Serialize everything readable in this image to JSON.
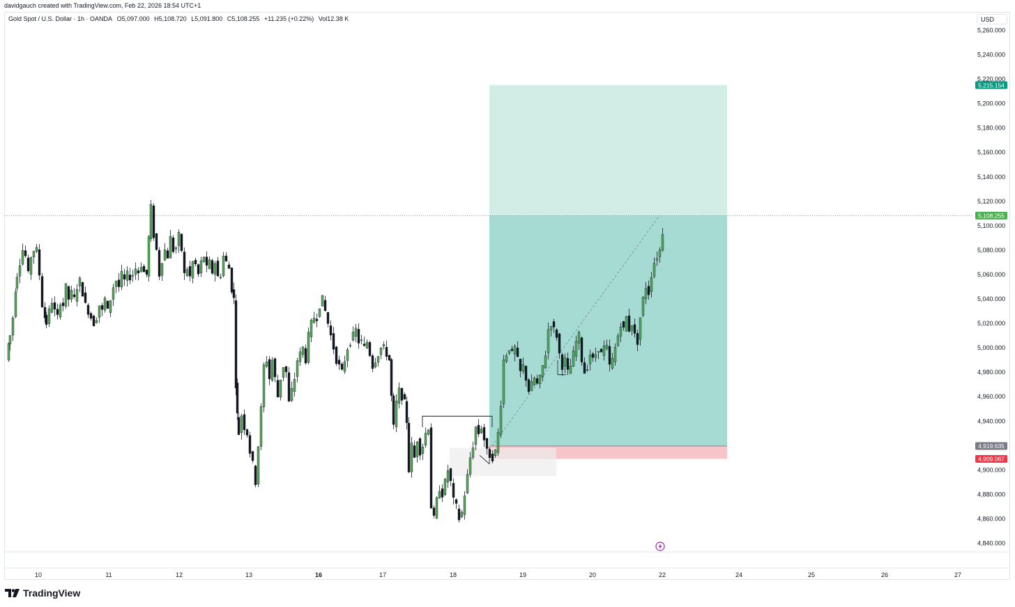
{
  "header": {
    "attribution": "davidgauch created with TradingView.com, Feb 22, 2026 18:54 UTC+1"
  },
  "legend": {
    "symbol": "Gold Spot / U.S. Dollar · 1h · OANDA",
    "open": "O5,097.000",
    "high": "H5,108.720",
    "low": "L5,091.800",
    "close": "C5,108.255",
    "change": "+11.235 (+0.22%)",
    "volume": "Vol12.38 K"
  },
  "currency_button": "USD",
  "brand": {
    "name": "TradingView"
  },
  "colors": {
    "up": "#089981",
    "candle_body": "#4caf50",
    "down": "#131722",
    "profit_zone": "#a5dbd2",
    "loss_zone": "#f7c5c9",
    "last_price": "#4caf50",
    "stop": "#f23645"
  },
  "chart_data": {
    "type": "candlestick",
    "symbol": "XAUUSD",
    "timeframe": "1h",
    "ylim": [
      4830,
      5270
    ],
    "price_ticks": [
      5260,
      5240,
      5220,
      5200,
      5180,
      5160,
      5140,
      5120,
      5100,
      5080,
      5060,
      5040,
      5020,
      5000,
      4980,
      4960,
      4940,
      4920,
      4900,
      4880,
      4860,
      4840
    ],
    "x_ticks": [
      "10",
      "11",
      "12",
      "13",
      "16",
      "17",
      "18",
      "19",
      "20",
      "22",
      "24",
      "25",
      "26",
      "27"
    ],
    "last_price": 5108.255,
    "price_badges": [
      {
        "label": "5,215.154",
        "value": 5215.154,
        "color": "#089981"
      },
      {
        "label": "5,108.255",
        "value": 5108.255,
        "color": "#4caf50"
      },
      {
        "label": "4,919.635",
        "value": 4919.635,
        "color": "#787b86"
      },
      {
        "label": "4,909.067",
        "value": 4909.067,
        "color": "#f23645"
      }
    ],
    "long_position": {
      "entry": 4919.635,
      "stop": 4909.067,
      "target": 5215.154
    },
    "price_path": [
      [
        0,
        4990
      ],
      [
        6,
        5010
      ],
      [
        10,
        5025
      ],
      [
        16,
        5060
      ],
      [
        20,
        5070
      ],
      [
        24,
        5080
      ],
      [
        28,
        5075
      ],
      [
        32,
        5060
      ],
      [
        36,
        5075
      ],
      [
        40,
        5080
      ],
      [
        44,
        5080
      ],
      [
        48,
        5060
      ],
      [
        52,
        5035
      ],
      [
        58,
        5020
      ],
      [
        62,
        5030
      ],
      [
        66,
        5038
      ],
      [
        70,
        5030
      ],
      [
        74,
        5025
      ],
      [
        78,
        5038
      ],
      [
        82,
        5035
      ],
      [
        86,
        5050
      ],
      [
        90,
        5040
      ],
      [
        94,
        5045
      ],
      [
        98,
        5040
      ],
      [
        102,
        5050
      ],
      [
        106,
        5055
      ],
      [
        110,
        5045
      ],
      [
        114,
        5035
      ],
      [
        118,
        5030
      ],
      [
        122,
        5025
      ],
      [
        126,
        5020
      ],
      [
        130,
        5025
      ],
      [
        134,
        5035
      ],
      [
        138,
        5030
      ],
      [
        142,
        5040
      ],
      [
        146,
        5030
      ],
      [
        150,
        5040
      ],
      [
        154,
        5050
      ],
      [
        158,
        5055
      ],
      [
        162,
        5050
      ],
      [
        166,
        5060
      ],
      [
        170,
        5055
      ],
      [
        174,
        5060
      ],
      [
        178,
        5058
      ],
      [
        182,
        5060
      ],
      [
        186,
        5065
      ],
      [
        190,
        5062
      ],
      [
        194,
        5068
      ],
      [
        198,
        5062
      ],
      [
        202,
        5060
      ],
      [
        205,
        5090
      ],
      [
        208,
        5115
      ],
      [
        212,
        5092
      ],
      [
        216,
        5080
      ],
      [
        220,
        5060
      ],
      [
        224,
        5072
      ],
      [
        228,
        5080
      ],
      [
        232,
        5075
      ],
      [
        236,
        5090
      ],
      [
        240,
        5080
      ],
      [
        244,
        5082
      ],
      [
        248,
        5092
      ],
      [
        252,
        5080
      ],
      [
        256,
        5060
      ],
      [
        260,
        5065
      ],
      [
        264,
        5058
      ],
      [
        268,
        5070
      ],
      [
        272,
        5068
      ],
      [
        276,
        5060
      ],
      [
        280,
        5070
      ],
      [
        284,
        5075
      ],
      [
        288,
        5065
      ],
      [
        292,
        5070
      ],
      [
        296,
        5062
      ],
      [
        300,
        5070
      ],
      [
        304,
        5058
      ],
      [
        308,
        5060
      ],
      [
        312,
        5075
      ],
      [
        316,
        5070
      ],
      [
        320,
        5065
      ],
      [
        324,
        5048
      ],
      [
        327,
        5040
      ],
      [
        330,
        4970
      ],
      [
        332,
        4945
      ],
      [
        334,
        4930
      ],
      [
        338,
        4945
      ],
      [
        342,
        4935
      ],
      [
        346,
        4930
      ],
      [
        350,
        4915
      ],
      [
        354,
        4905
      ],
      [
        358,
        4890
      ],
      [
        362,
        4920
      ],
      [
        366,
        4950
      ],
      [
        370,
        4985
      ],
      [
        374,
        4990
      ],
      [
        378,
        4975
      ],
      [
        382,
        4990
      ],
      [
        386,
        4975
      ],
      [
        390,
        4960
      ],
      [
        394,
        4975
      ],
      [
        398,
        4985
      ],
      [
        402,
        4980
      ],
      [
        406,
        4955
      ],
      [
        410,
        4965
      ],
      [
        414,
        4975
      ],
      [
        418,
        4990
      ],
      [
        422,
        4995
      ],
      [
        426,
        5000
      ],
      [
        430,
        4990
      ],
      [
        434,
        5010
      ],
      [
        438,
        5020
      ],
      [
        442,
        5025
      ],
      [
        446,
        5025
      ],
      [
        450,
        5035
      ],
      [
        454,
        5040
      ],
      [
        458,
        5030
      ],
      [
        462,
        5020
      ],
      [
        466,
        5010
      ],
      [
        470,
        5000
      ],
      [
        474,
        4990
      ],
      [
        478,
        4985
      ],
      [
        482,
        4980
      ],
      [
        486,
        4990
      ],
      [
        490,
        5000
      ],
      [
        494,
        5005
      ],
      [
        498,
        5010
      ],
      [
        502,
        5015
      ],
      [
        506,
        5005
      ],
      [
        510,
        5005
      ],
      [
        514,
        5000
      ],
      [
        518,
        5005
      ],
      [
        522,
        4995
      ],
      [
        526,
        4985
      ],
      [
        530,
        4990
      ],
      [
        534,
        4995
      ],
      [
        538,
        5000
      ],
      [
        542,
        5000
      ],
      [
        546,
        4995
      ],
      [
        550,
        4990
      ],
      [
        553,
        4960
      ],
      [
        556,
        4935
      ],
      [
        560,
        4955
      ],
      [
        564,
        4965
      ],
      [
        568,
        4960
      ],
      [
        572,
        4955
      ],
      [
        575,
        4940
      ],
      [
        578,
        4900
      ],
      [
        582,
        4920
      ],
      [
        586,
        4910
      ],
      [
        590,
        4925
      ],
      [
        594,
        4915
      ],
      [
        598,
        4920
      ],
      [
        602,
        4930
      ],
      [
        606,
        4935
      ],
      [
        610,
        4870
      ],
      [
        614,
        4860
      ],
      [
        618,
        4875
      ],
      [
        622,
        4885
      ],
      [
        626,
        4880
      ],
      [
        630,
        4890
      ],
      [
        634,
        4900
      ],
      [
        638,
        4890
      ],
      [
        642,
        4875
      ],
      [
        646,
        4870
      ],
      [
        650,
        4860
      ],
      [
        654,
        4865
      ],
      [
        658,
        4880
      ],
      [
        662,
        4895
      ],
      [
        666,
        4910
      ],
      [
        670,
        4920
      ],
      [
        674,
        4935
      ],
      [
        678,
        4930
      ],
      [
        682,
        4935
      ],
      [
        686,
        4925
      ],
      [
        690,
        4915
      ],
      [
        694,
        4912
      ],
      [
        698,
        4910
      ],
      [
        702,
        4915
      ],
      [
        706,
        4930
      ],
      [
        710,
        4955
      ],
      [
        714,
        4990
      ],
      [
        718,
        4995
      ],
      [
        722,
        5000
      ],
      [
        726,
        4995
      ],
      [
        730,
        5000
      ],
      [
        734,
        4990
      ],
      [
        738,
        4980
      ],
      [
        742,
        4985
      ],
      [
        746,
        4975
      ],
      [
        750,
        4965
      ],
      [
        754,
        4970
      ],
      [
        758,
        4975
      ],
      [
        762,
        4970
      ],
      [
        766,
        4975
      ],
      [
        770,
        4985
      ],
      [
        774,
        4995
      ],
      [
        778,
        5015
      ],
      [
        782,
        5020
      ],
      [
        786,
        5015
      ],
      [
        790,
        5010
      ],
      [
        794,
        4995
      ],
      [
        798,
        4985
      ],
      [
        802,
        4990
      ],
      [
        806,
        4980
      ],
      [
        810,
        4985
      ],
      [
        814,
        4995
      ],
      [
        818,
        5005
      ],
      [
        822,
        5010
      ],
      [
        826,
        4990
      ],
      [
        830,
        4980
      ],
      [
        834,
        4985
      ],
      [
        838,
        4995
      ],
      [
        842,
        4990
      ],
      [
        846,
        4995
      ],
      [
        850,
        5000
      ],
      [
        854,
        4995
      ],
      [
        858,
        5000
      ],
      [
        862,
        5000
      ],
      [
        866,
        4985
      ],
      [
        870,
        4990
      ],
      [
        874,
        5000
      ],
      [
        878,
        5010
      ],
      [
        882,
        5020
      ],
      [
        886,
        5015
      ],
      [
        890,
        5025
      ],
      [
        894,
        5015
      ],
      [
        898,
        5020
      ],
      [
        902,
        5010
      ],
      [
        906,
        5005
      ],
      [
        910,
        5025
      ],
      [
        914,
        5040
      ],
      [
        918,
        5050
      ],
      [
        922,
        5045
      ],
      [
        926,
        5060
      ],
      [
        930,
        5070
      ],
      [
        934,
        5075
      ],
      [
        938,
        5080
      ],
      [
        942,
        5095
      ],
      [
        946,
        5108
      ]
    ]
  }
}
